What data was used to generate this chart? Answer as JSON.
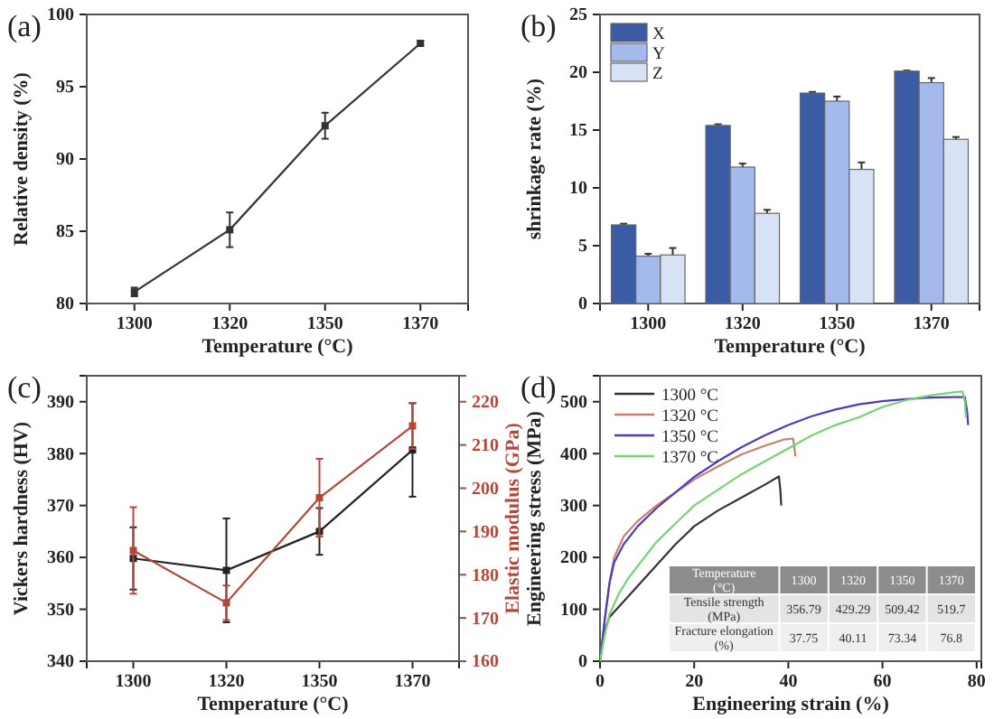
{
  "chart_data": [
    {
      "type": "line",
      "title": "(a)",
      "xlabel": "Temperature (°C)",
      "ylabel": "Relative density (%)",
      "categories": [
        "1300",
        "1320",
        "1350",
        "1370"
      ],
      "marker": "square",
      "ylim": [
        80,
        100
      ],
      "yticks": [
        80,
        85,
        90,
        95,
        100
      ],
      "series": [
        {
          "color": "#333333",
          "values": [
            80.8,
            85.1,
            92.3,
            98.0
          ],
          "errors": [
            0.3,
            1.2,
            0.9,
            0.15
          ]
        }
      ]
    },
    {
      "type": "bar",
      "title": "(b)",
      "xlabel": "Temperature (°C)",
      "ylabel": "shrinkage rate (%)",
      "categories": [
        "1300",
        "1320",
        "1350",
        "1370"
      ],
      "ylim": [
        0,
        25
      ],
      "yticks": [
        0,
        5,
        10,
        15,
        20,
        25
      ],
      "legend": "top left",
      "series": [
        {
          "name": "X",
          "color": "#3b5ba5",
          "values": [
            6.8,
            15.4,
            18.2,
            20.1
          ],
          "errors": [
            0.1,
            0.1,
            0.1,
            0.05
          ]
        },
        {
          "name": "Y",
          "color": "#a4b9ec",
          "values": [
            4.1,
            11.8,
            17.5,
            19.1
          ],
          "errors": [
            0.2,
            0.3,
            0.4,
            0.4
          ]
        },
        {
          "name": "Z",
          "color": "#d8e2f7",
          "values": [
            4.2,
            7.8,
            11.6,
            14.2
          ],
          "errors": [
            0.6,
            0.3,
            0.6,
            0.2
          ]
        }
      ]
    },
    {
      "type": "line",
      "title": "(c)",
      "xlabel": "Temperature (°C)",
      "ylabel": "Vickers hardness (HV)",
      "y2label": "Elastic modulus (GPa)",
      "categories": [
        "1300",
        "1320",
        "1350",
        "1370"
      ],
      "marker": "square",
      "ylim": [
        340,
        395
      ],
      "yticks": [
        340,
        350,
        360,
        370,
        380,
        390
      ],
      "y2lim": [
        160,
        226
      ],
      "y2ticks": [
        160,
        170,
        180,
        190,
        200,
        210,
        220
      ],
      "series": [
        {
          "color": "#222222",
          "values": [
            359.8,
            357.5,
            365,
            380.7
          ],
          "errors": [
            6,
            10,
            4.5,
            9
          ]
        },
        {
          "color": "#b5473a",
          "axis": "y2",
          "values": [
            185.6,
            173.5,
            197.8,
            214.4
          ],
          "errors": [
            10,
            4,
            9,
            5.3
          ]
        }
      ]
    },
    {
      "type": "line",
      "title": "(d)",
      "xlabel": "Engineering strain (%)",
      "ylabel": "Engineering stress (MPa)",
      "xlim": [
        0,
        81
      ],
      "xticks": [
        0,
        20,
        40,
        60,
        80
      ],
      "ylim": [
        0,
        550
      ],
      "yticks": [
        0,
        100,
        200,
        300,
        400,
        500
      ],
      "legend": "top left",
      "annotations": [
        "Temperature (°C)",
        "1300",
        "1320",
        "1350",
        "1370",
        "Tensile strength (MPa)",
        "356.79",
        "429.29",
        "509.42",
        "519.7",
        "Fracture elongation (%)",
        "37.75",
        "40.11",
        "73.34",
        "76.8"
      ],
      "series": [
        {
          "name": "1300 °C",
          "color": "#333333",
          "x": [
            0,
            0.5,
            1,
            2,
            4,
            6,
            8,
            10,
            13,
            16,
            20,
            25,
            30,
            35,
            38,
            38.3,
            38.5
          ],
          "values": [
            0,
            30,
            60,
            85,
            105,
            125,
            145,
            165,
            195,
            225,
            260,
            290,
            315,
            340,
            356,
            330,
            300
          ]
        },
        {
          "name": "1320 °C",
          "color": "#c8806a",
          "x": [
            0,
            1,
            2,
            3,
            5,
            8,
            12,
            16,
            20,
            25,
            30,
            35,
            39,
            41,
            41.3,
            41.5
          ],
          "values": [
            0,
            80,
            150,
            200,
            240,
            270,
            300,
            325,
            350,
            375,
            398,
            415,
            427,
            429,
            410,
            395
          ]
        },
        {
          "name": "1350 °C",
          "color": "#4b3cc4",
          "x": [
            0,
            1,
            2,
            3,
            5,
            8,
            12,
            16,
            20,
            25,
            30,
            35,
            40,
            45,
            50,
            55,
            60,
            65,
            70,
            75,
            77.5,
            78,
            78.2
          ],
          "values": [
            0,
            80,
            150,
            190,
            225,
            260,
            295,
            325,
            355,
            385,
            412,
            435,
            455,
            472,
            485,
            495,
            501,
            505,
            508,
            509,
            509,
            480,
            455
          ]
        },
        {
          "name": "1370 °C",
          "color": "#72d672",
          "x": [
            0,
            1,
            2,
            4,
            6,
            9,
            12,
            16,
            20,
            25,
            30,
            35,
            40,
            45,
            50,
            55,
            60,
            65,
            70,
            75,
            77,
            77.5,
            77.7
          ],
          "values": [
            0,
            50,
            90,
            130,
            160,
            195,
            230,
            265,
            300,
            330,
            360,
            385,
            410,
            435,
            455,
            470,
            490,
            503,
            512,
            518,
            520,
            500,
            470
          ]
        }
      ]
    }
  ]
}
